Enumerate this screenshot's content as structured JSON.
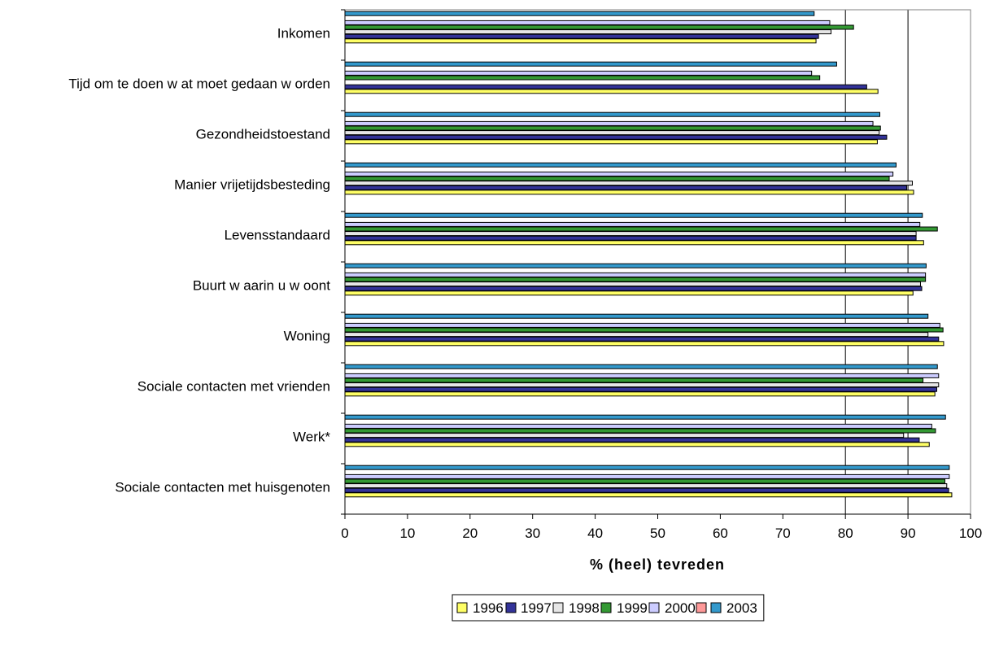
{
  "chart_data": {
    "type": "bar",
    "orientation": "horizontal",
    "categories": [
      "Inkomen",
      "Tijd om te doen w at moet gedaan w orden",
      "Gezondheidstoestand",
      "Manier vrijetijdsbesteding",
      "Levensstandaard",
      "Buurt w aarin u w oont",
      "Woning",
      "Sociale contacten met vrienden",
      "Werk*",
      "Sociale contacten met huisgenoten"
    ],
    "series": [
      {
        "name": "1996",
        "color": "#ffff66",
        "values": [
          75.3,
          85.2,
          85.1,
          90.9,
          92.5,
          90.8,
          95.7,
          94.3,
          93.4,
          97.0
        ]
      },
      {
        "name": "1997",
        "color": "#333399",
        "values": [
          75.7,
          83.4,
          86.6,
          89.8,
          91.3,
          92.2,
          94.9,
          94.6,
          91.8,
          96.5
        ]
      },
      {
        "name": "1998",
        "color": "#e6e6e6",
        "values": [
          77.7,
          null,
          85.4,
          90.7,
          91.3,
          92.0,
          93.2,
          94.9,
          89.3,
          96.2
        ]
      },
      {
        "name": "1999",
        "color": "#339933",
        "values": [
          81.3,
          75.9,
          85.6,
          87.0,
          94.7,
          92.8,
          95.6,
          92.4,
          94.4,
          95.9
        ]
      },
      {
        "name": "2000",
        "color": "#ccccff",
        "values": [
          77.5,
          74.6,
          84.4,
          87.6,
          91.9,
          92.8,
          95.1,
          94.9,
          93.8,
          96.6
        ]
      },
      {
        "name": "",
        "color": "#ff9999",
        "values": [
          null,
          null,
          null,
          null,
          null,
          null,
          null,
          null,
          null,
          null
        ]
      },
      {
        "name": "2003",
        "color": "#3399cc",
        "values": [
          75.0,
          78.6,
          85.5,
          88.1,
          92.3,
          92.9,
          93.2,
          94.7,
          96.0,
          96.6
        ]
      }
    ],
    "xlim": [
      0,
      100
    ],
    "x_ticks": [
      "0",
      "10",
      "20",
      "30",
      "40",
      "50",
      "60",
      "70",
      "80",
      "90",
      "100"
    ],
    "xlabel": "% (heel) tevreden",
    "ylabel": "",
    "grid": "vertical gridlines at 80 and 90",
    "gridlines_at": [
      80,
      90
    ],
    "legend_position": "bottom"
  }
}
